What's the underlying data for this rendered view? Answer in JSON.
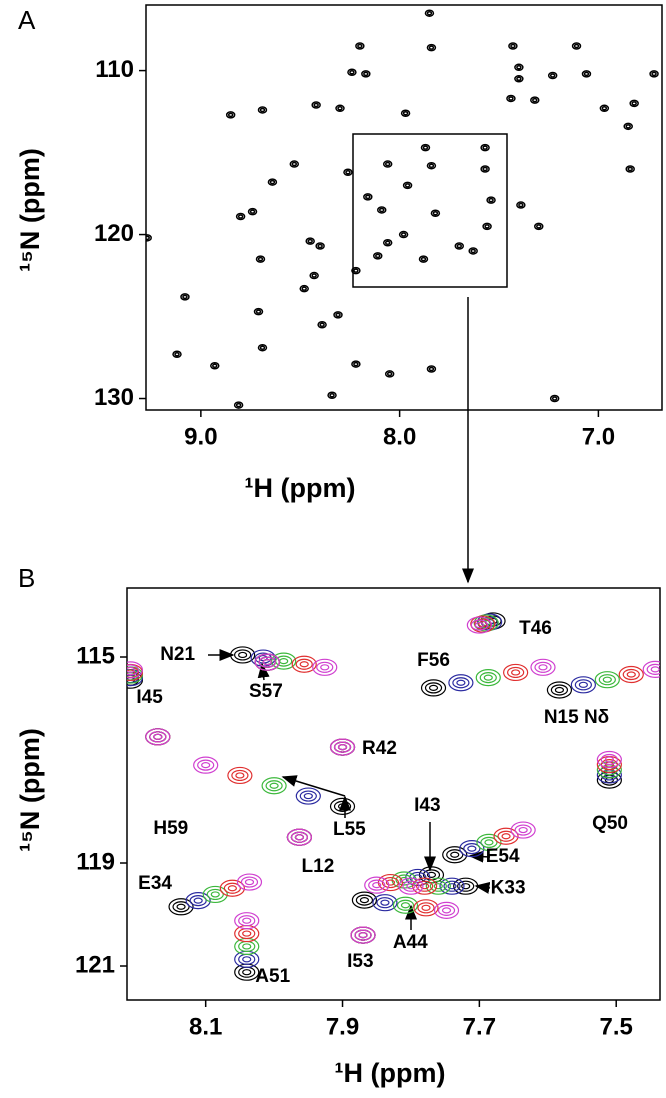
{
  "chart_data": [
    {
      "type": "scatter",
      "panel_label": "A",
      "x_label": "¹H (ppm)",
      "y_label": "¹⁵N (ppm)",
      "xlim": [
        9.276,
        6.68
      ],
      "ylim": [
        106.0,
        130.7
      ],
      "xticks": [
        {
          "value": 9,
          "label": "9.0"
        },
        {
          "value": 8,
          "label": "8.0"
        },
        {
          "value": 7,
          "label": "7.0"
        }
      ],
      "yticks": [
        110,
        120,
        130
      ],
      "series": [
        {
          "color": "#000000",
          "x": [
            7.85,
            8.2,
            7.84,
            7.43,
            7.11,
            8.24,
            8.17,
            7.4,
            7.4,
            7.23,
            7.06,
            6.72,
            7.44,
            7.32,
            8.85,
            8.69,
            8.42,
            8.3,
            7.97,
            6.97,
            6.82,
            6.85,
            7.87,
            7.57,
            8.06,
            7.84,
            7.57,
            6.84,
            8.53,
            8.26,
            8.64,
            7.96,
            8.16,
            7.54,
            7.39,
            8.8,
            8.74,
            8.09,
            7.82,
            7.56,
            7.3,
            9.27,
            7.98,
            7.7,
            7.63,
            8.45,
            8.4,
            8.06,
            8.7,
            7.88,
            8.11,
            8.22,
            9.31,
            8.43,
            8.48,
            9.08,
            8.71,
            8.31,
            8.39,
            9.12,
            8.69,
            8.93,
            8.22,
            7.84,
            8.05,
            8.34,
            7.22,
            8.81
          ],
          "values": [
            106.5,
            108.5,
            108.6,
            108.5,
            108.5,
            110.1,
            110.2,
            109.8,
            110.5,
            110.3,
            110.2,
            110.2,
            111.7,
            111.8,
            112.7,
            112.4,
            112.1,
            112.3,
            112.6,
            112.3,
            112.0,
            113.4,
            114.7,
            114.7,
            115.7,
            115.8,
            116.0,
            116.0,
            115.7,
            116.2,
            116.8,
            117.0,
            117.7,
            117.9,
            118.2,
            118.9,
            118.6,
            118.5,
            118.7,
            119.5,
            119.5,
            120.2,
            120.0,
            120.7,
            121.0,
            120.4,
            120.7,
            120.5,
            121.5,
            121.5,
            121.3,
            122.2,
            122.3,
            122.5,
            123.3,
            123.8,
            124.7,
            124.9,
            125.5,
            127.3,
            126.9,
            128.0,
            127.9,
            128.2,
            128.5,
            129.8,
            130.0,
            130.4
          ]
        }
      ]
    },
    {
      "type": "scatter",
      "panel_label": "B",
      "x_label": "¹H (ppm)",
      "y_label": "¹⁵N (ppm)",
      "xlim": [
        8.215,
        7.436
      ],
      "ylim": [
        113.66,
        121.66
      ],
      "xticks": [
        8.1,
        7.9,
        7.7,
        7.5
      ],
      "yticks": [
        115,
        119,
        121
      ],
      "series": [
        {
          "color": "#000000",
          "x": [
            8.046,
            8.01,
            7.68,
            7.767,
            7.583,
            8.21,
            7.9,
            7.51,
            8.17,
            7.9,
            7.963,
            7.77,
            7.736,
            7.72,
            8.136,
            7.868,
            7.87,
            8.04
          ],
          "values": [
            114.96,
            115.1,
            114.3,
            115.6,
            115.64,
            115.45,
            116.75,
            117.39,
            116.55,
            117.9,
            118.5,
            119.23,
            118.84,
            119.45,
            119.85,
            119.72,
            120.4,
            121.12
          ]
        },
        {
          "color": "#2a2aa0",
          "x": [
            8.016,
            8.01,
            7.685,
            7.727,
            7.548,
            8.21,
            7.9,
            7.51,
            8.17,
            7.95,
            7.963,
            7.79,
            7.711,
            7.74,
            8.111,
            7.838,
            7.87,
            8.04
          ],
          "values": [
            115.02,
            115.1,
            114.32,
            115.5,
            115.54,
            115.4,
            116.75,
            117.29,
            116.55,
            117.7,
            118.5,
            119.28,
            118.72,
            119.45,
            119.73,
            119.77,
            120.4,
            120.87
          ]
        },
        {
          "color": "#3cb83c",
          "x": [
            7.986,
            8.01,
            7.69,
            7.687,
            7.513,
            8.21,
            7.9,
            7.51,
            8.17,
            8.0,
            7.963,
            7.81,
            7.686,
            7.76,
            8.086,
            7.808,
            7.87,
            8.04
          ],
          "values": [
            115.08,
            115.1,
            114.34,
            115.4,
            115.44,
            115.35,
            116.75,
            117.19,
            116.55,
            117.5,
            118.5,
            119.33,
            118.6,
            119.45,
            119.61,
            119.82,
            120.4,
            120.62
          ]
        },
        {
          "color": "#e03030",
          "x": [
            7.956,
            8.01,
            7.695,
            7.647,
            7.478,
            8.21,
            7.9,
            7.51,
            8.17,
            8.05,
            7.963,
            7.83,
            7.661,
            7.78,
            8.061,
            7.778,
            7.87,
            8.04
          ],
          "values": [
            115.14,
            115.1,
            114.36,
            115.3,
            115.34,
            115.3,
            116.75,
            117.09,
            116.55,
            117.3,
            118.5,
            119.38,
            118.48,
            119.45,
            119.49,
            119.87,
            120.4,
            120.37
          ]
        },
        {
          "color": "#d040d0",
          "x": [
            7.926,
            8.01,
            7.7,
            7.607,
            7.443,
            8.21,
            7.9,
            7.51,
            8.17,
            8.1,
            7.963,
            7.85,
            7.636,
            7.8,
            8.036,
            7.748,
            7.87,
            8.04
          ],
          "values": [
            115.2,
            115.1,
            114.38,
            115.2,
            115.24,
            115.25,
            116.75,
            116.99,
            116.55,
            117.1,
            118.5,
            119.43,
            118.36,
            119.45,
            119.37,
            119.92,
            120.4,
            120.12
          ]
        }
      ],
      "annotations": [
        {
          "text": "N21",
          "x": 8.141,
          "y": 114.96
        },
        {
          "text": "S57",
          "x": 8.012,
          "y": 115.68
        },
        {
          "text": "T46",
          "x": 7.618,
          "y": 114.46
        },
        {
          "text": "F56",
          "x": 7.767,
          "y": 115.08
        },
        {
          "text": "N15 Nδ",
          "x": 7.558,
          "y": 116.18
        },
        {
          "text": "I45",
          "x": 8.182,
          "y": 115.8
        },
        {
          "text": "R42",
          "x": 7.846,
          "y": 116.79
        },
        {
          "text": "Q50",
          "x": 7.509,
          "y": 118.24
        },
        {
          "text": "H59",
          "x": 8.151,
          "y": 118.34
        },
        {
          "text": "L55",
          "x": 7.89,
          "y": 118.36
        },
        {
          "text": "L12",
          "x": 7.936,
          "y": 119.08
        },
        {
          "text": "I43",
          "x": 7.776,
          "y": 117.89
        },
        {
          "text": "E54",
          "x": 7.666,
          "y": 118.88
        },
        {
          "text": "K33",
          "x": 7.658,
          "y": 119.49
        },
        {
          "text": "E34",
          "x": 8.174,
          "y": 119.41
        },
        {
          "text": "A44",
          "x": 7.801,
          "y": 120.55
        },
        {
          "text": "I53",
          "x": 7.874,
          "y": 120.92
        },
        {
          "text": "A51",
          "x": 8.002,
          "y": 121.21
        }
      ]
    }
  ]
}
